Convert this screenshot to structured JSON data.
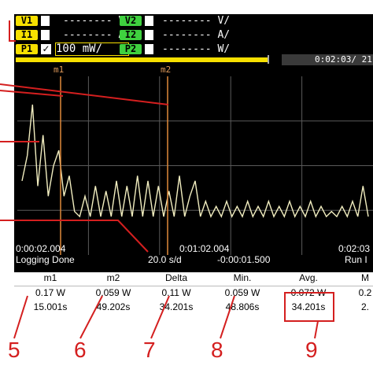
{
  "channels": [
    {
      "label": "V1",
      "value": "-------- V/",
      "color": "#f7e000"
    },
    {
      "label": "I1",
      "value": "-------- A/",
      "color": "#f7e000"
    },
    {
      "label": "P1",
      "value": "100 mW/",
      "color": "#f7e000"
    },
    {
      "label": "V2",
      "value": "-------- V/",
      "color": "#3fd13f"
    },
    {
      "label": "I2",
      "value": "-------- A/",
      "color": "#3fd13f"
    },
    {
      "label": "P2",
      "value": "-------- W/",
      "color": "#3fd13f"
    }
  ],
  "time_readout": "0:02:03/ 21",
  "markers": {
    "m1": "m1",
    "m2": "m2"
  },
  "status": {
    "time_left": "0:00:02.004",
    "time_mid": "0:01:02.004",
    "time_right": "0:02:03",
    "mode": "Logging Done",
    "scale": "20.0 s/d",
    "offset": "-0:00:01.500",
    "run": "Run I"
  },
  "measurements": {
    "headers": [
      "m1",
      "m2",
      "Delta",
      "Min.",
      "Avg.",
      "M"
    ],
    "row1": [
      "0.17 W",
      "0.059 W",
      "0.11 W",
      "0.059 W",
      "0.072 W",
      "0.2"
    ],
    "row2": [
      "15.001s",
      "49.202s",
      "34.201s",
      "48.806s",
      "34.201s",
      "2."
    ]
  },
  "callouts": [
    "5",
    "6",
    "7",
    "8",
    "9"
  ],
  "colors": {
    "callout": "#d41f1f",
    "trace": "#f2eec0",
    "marker": "#e08a3a",
    "grid": "#5a5a5a"
  },
  "chart_data": {
    "type": "line",
    "series": [
      {
        "values": [
          0.13,
          0.18,
          0.28,
          0.12,
          0.22,
          0.1,
          0.16,
          0.19,
          0.1,
          0.14,
          0.07,
          0.06,
          0.1,
          0.06,
          0.12,
          0.06,
          0.11,
          0.06,
          0.13,
          0.06,
          0.12,
          0.06,
          0.14,
          0.06,
          0.13,
          0.06,
          0.12,
          0.06,
          0.11,
          0.06,
          0.14,
          0.06,
          0.1,
          0.13,
          0.06,
          0.09,
          0.06,
          0.08,
          0.06,
          0.09,
          0.06,
          0.08,
          0.06,
          0.09,
          0.06,
          0.08,
          0.06,
          0.09,
          0.06,
          0.08,
          0.06,
          0.09,
          0.06,
          0.08,
          0.06,
          0.09,
          0.06,
          0.08,
          0.06,
          0.07,
          0.06,
          0.08,
          0.06,
          0.09,
          0.06,
          0.12,
          0.06
        ]
      }
    ],
    "grid": true
  }
}
